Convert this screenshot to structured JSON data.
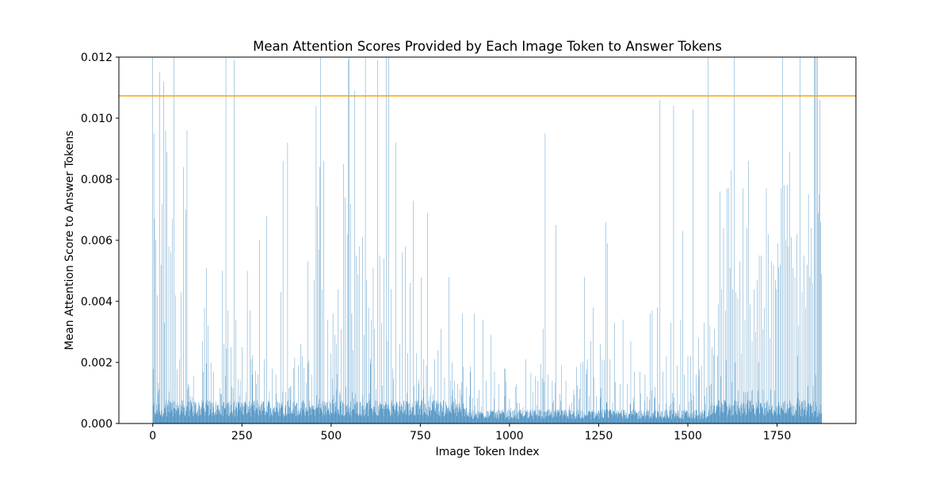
{
  "chart_data": {
    "type": "bar",
    "title": "Mean Attention Scores Provided by Each Image Token to Answer Tokens",
    "xlabel": "Image Token Index",
    "ylabel": "Mean Attention Score to Answer Tokens",
    "xlim": [
      -95,
      1971
    ],
    "ylim": [
      0,
      0.012
    ],
    "x_ticks": [
      0,
      250,
      500,
      750,
      1000,
      1250,
      1500,
      1750
    ],
    "x_tick_labels": [
      "0",
      "250",
      "500",
      "750",
      "1000",
      "1250",
      "1500",
      "1750"
    ],
    "y_ticks": [
      0,
      0.002,
      0.004,
      0.006,
      0.008,
      0.01,
      0.012
    ],
    "y_tick_labels": [
      "0.000",
      "0.002",
      "0.004",
      "0.006",
      "0.008",
      "0.010",
      "0.012"
    ],
    "grid": false,
    "n_bars": 1876,
    "bar_color": "#1f77b4",
    "threshold_line": {
      "value": 0.01073,
      "color": "#ffa500"
    },
    "spikes": [
      [
        0,
        0.012
      ],
      [
        3,
        0.0095
      ],
      [
        5,
        0.0067
      ],
      [
        8,
        0.006
      ],
      [
        12,
        0.0042
      ],
      [
        15,
        0.001
      ],
      [
        20,
        0.0115
      ],
      [
        23,
        0.0052
      ],
      [
        26,
        0.0072
      ],
      [
        30,
        0.0112
      ],
      [
        33,
        0.0033
      ],
      [
        36,
        0.0096
      ],
      [
        39,
        0.0089
      ],
      [
        45,
        0.0058
      ],
      [
        50,
        0.0056
      ],
      [
        55,
        0.0067
      ],
      [
        60,
        0.012
      ],
      [
        63,
        0.0042
      ],
      [
        75,
        0.0021
      ],
      [
        80,
        0.0043
      ],
      [
        86,
        0.0084
      ],
      [
        92,
        0.007
      ],
      [
        96,
        0.0096
      ],
      [
        100,
        0.0013
      ],
      [
        105,
        0.0009
      ],
      [
        140,
        0.0027
      ],
      [
        145,
        0.0038
      ],
      [
        150,
        0.0051
      ],
      [
        155,
        0.0032
      ],
      [
        170,
        0.0017
      ],
      [
        195,
        0.005
      ],
      [
        200,
        0.0026
      ],
      [
        205,
        0.012
      ],
      [
        210,
        0.0037
      ],
      [
        220,
        0.0025
      ],
      [
        228,
        0.0119
      ],
      [
        232,
        0.0034
      ],
      [
        245,
        0.0014
      ],
      [
        250,
        0.0025
      ],
      [
        265,
        0.005
      ],
      [
        272,
        0.0037
      ],
      [
        280,
        0.0016
      ],
      [
        295,
        0.0016
      ],
      [
        300,
        0.006
      ],
      [
        320,
        0.0068
      ],
      [
        335,
        0.0018
      ],
      [
        345,
        0.0016
      ],
      [
        360,
        0.0043
      ],
      [
        365,
        0.0086
      ],
      [
        378,
        0.0092
      ],
      [
        385,
        0.0012
      ],
      [
        395,
        0.0018
      ],
      [
        408,
        0.0019
      ],
      [
        415,
        0.0026
      ],
      [
        420,
        0.0022
      ],
      [
        435,
        0.0053
      ],
      [
        445,
        0.0016
      ],
      [
        452,
        0.0047
      ],
      [
        458,
        0.0104
      ],
      [
        462,
        0.0071
      ],
      [
        465,
        0.0057
      ],
      [
        468,
        0.0084
      ],
      [
        471,
        0.012
      ],
      [
        475,
        0.0044
      ],
      [
        480,
        0.0086
      ],
      [
        490,
        0.0034
      ],
      [
        500,
        0.0023
      ],
      [
        505,
        0.0036
      ],
      [
        510,
        0.0029
      ],
      [
        515,
        0.0026
      ],
      [
        520,
        0.0044
      ],
      [
        528,
        0.0031
      ],
      [
        535,
        0.0085
      ],
      [
        540,
        0.0074
      ],
      [
        545,
        0.0062
      ],
      [
        548,
        0.0119
      ],
      [
        551,
        0.012
      ],
      [
        554,
        0.0072
      ],
      [
        558,
        0.0036
      ],
      [
        562,
        0.0024
      ],
      [
        566,
        0.0109
      ],
      [
        570,
        0.0055
      ],
      [
        575,
        0.0049
      ],
      [
        580,
        0.0058
      ],
      [
        588,
        0.0061
      ],
      [
        592,
        0.0029
      ],
      [
        596,
        0.012
      ],
      [
        600,
        0.0047
      ],
      [
        605,
        0.0038
      ],
      [
        612,
        0.0034
      ],
      [
        618,
        0.0051
      ],
      [
        622,
        0.0031
      ],
      [
        630,
        0.0119
      ],
      [
        636,
        0.0055
      ],
      [
        642,
        0.0033
      ],
      [
        648,
        0.0054
      ],
      [
        654,
        0.012
      ],
      [
        658,
        0.0027
      ],
      [
        662,
        0.012
      ],
      [
        668,
        0.0044
      ],
      [
        672,
        0.0018
      ],
      [
        682,
        0.0092
      ],
      [
        692,
        0.0026
      ],
      [
        700,
        0.0056
      ],
      [
        708,
        0.0058
      ],
      [
        715,
        0.0023
      ],
      [
        722,
        0.0046
      ],
      [
        730,
        0.0073
      ],
      [
        740,
        0.0023
      ],
      [
        745,
        0.0013
      ],
      [
        752,
        0.0048
      ],
      [
        760,
        0.0021
      ],
      [
        770,
        0.0069
      ],
      [
        780,
        0.0012
      ],
      [
        790,
        0.0021
      ],
      [
        800,
        0.0024
      ],
      [
        808,
        0.0031
      ],
      [
        818,
        0.0015
      ],
      [
        830,
        0.0048
      ],
      [
        842,
        0.0011
      ],
      [
        855,
        0.0013
      ],
      [
        868,
        0.0036
      ],
      [
        880,
        0.0012
      ],
      [
        890,
        0.0017
      ],
      [
        902,
        0.0036
      ],
      [
        915,
        0.0011
      ],
      [
        925,
        0.0034
      ],
      [
        935,
        0.0014
      ],
      [
        948,
        0.0029
      ],
      [
        958,
        0.0017
      ],
      [
        970,
        0.0013
      ],
      [
        985,
        0.0018
      ],
      [
        1000,
        0.0008
      ],
      [
        1020,
        0.0013
      ],
      [
        1045,
        0.0021
      ],
      [
        1060,
        0.0005
      ],
      [
        1080,
        0.0014
      ],
      [
        1095,
        0.0031
      ],
      [
        1100,
        0.0095
      ],
      [
        1108,
        0.0016
      ],
      [
        1120,
        0.0014
      ],
      [
        1130,
        0.0065
      ],
      [
        1145,
        0.0019
      ],
      [
        1158,
        0.0014
      ],
      [
        1168,
        0.0006
      ],
      [
        1180,
        0.0011
      ],
      [
        1200,
        0.0017
      ],
      [
        1210,
        0.0048
      ],
      [
        1218,
        0.0021
      ],
      [
        1228,
        0.0027
      ],
      [
        1235,
        0.0038
      ],
      [
        1243,
        0.0009
      ],
      [
        1255,
        0.0026
      ],
      [
        1260,
        0.0021
      ],
      [
        1270,
        0.0066
      ],
      [
        1275,
        0.0059
      ],
      [
        1282,
        0.0021
      ],
      [
        1295,
        0.0033
      ],
      [
        1310,
        0.0013
      ],
      [
        1318,
        0.0034
      ],
      [
        1330,
        0.0013
      ],
      [
        1340,
        0.0027
      ],
      [
        1350,
        0.0017
      ],
      [
        1365,
        0.0017
      ],
      [
        1380,
        0.0016
      ],
      [
        1395,
        0.0036
      ],
      [
        1400,
        0.0037
      ],
      [
        1408,
        0.0012
      ],
      [
        1415,
        0.0038
      ],
      [
        1422,
        0.0106
      ],
      [
        1430,
        0.0017
      ],
      [
        1440,
        0.0022
      ],
      [
        1452,
        0.0033
      ],
      [
        1460,
        0.0104
      ],
      [
        1470,
        0.0019
      ],
      [
        1480,
        0.0034
      ],
      [
        1485,
        0.0063
      ],
      [
        1490,
        0.0016
      ],
      [
        1500,
        0.0022
      ],
      [
        1508,
        0.0022
      ],
      [
        1515,
        0.0103
      ],
      [
        1523,
        0.0016
      ],
      [
        1530,
        0.0028
      ],
      [
        1538,
        0.0019
      ],
      [
        1545,
        0.0033
      ],
      [
        1552,
        0.0012
      ],
      [
        1557,
        0.012
      ],
      [
        1562,
        0.0032
      ],
      [
        1568,
        0.0025
      ],
      [
        1575,
        0.0031
      ],
      [
        1585,
        0.0039
      ],
      [
        1590,
        0.0076
      ],
      [
        1595,
        0.0044
      ],
      [
        1600,
        0.0064
      ],
      [
        1605,
        0.0037
      ],
      [
        1610,
        0.0077
      ],
      [
        1615,
        0.0077
      ],
      [
        1618,
        0.0051
      ],
      [
        1622,
        0.0083
      ],
      [
        1626,
        0.0044
      ],
      [
        1630,
        0.012
      ],
      [
        1635,
        0.0043
      ],
      [
        1640,
        0.0041
      ],
      [
        1645,
        0.0053
      ],
      [
        1650,
        0.0023
      ],
      [
        1655,
        0.0077
      ],
      [
        1660,
        0.0034
      ],
      [
        1665,
        0.0064
      ],
      [
        1670,
        0.0086
      ],
      [
        1675,
        0.0039
      ],
      [
        1680,
        0.0027
      ],
      [
        1685,
        0.0044
      ],
      [
        1690,
        0.003
      ],
      [
        1695,
        0.0047
      ],
      [
        1700,
        0.0055
      ],
      [
        1705,
        0.0055
      ],
      [
        1710,
        0.0031
      ],
      [
        1715,
        0.0038
      ],
      [
        1720,
        0.0077
      ],
      [
        1725,
        0.0062
      ],
      [
        1730,
        0.0028
      ],
      [
        1735,
        0.0053
      ],
      [
        1740,
        0.0052
      ],
      [
        1745,
        0.0047
      ],
      [
        1748,
        0.0044
      ],
      [
        1752,
        0.0059
      ],
      [
        1755,
        0.0051
      ],
      [
        1758,
        0.0052
      ],
      [
        1762,
        0.0077
      ],
      [
        1766,
        0.012
      ],
      [
        1770,
        0.0078
      ],
      [
        1774,
        0.006
      ],
      [
        1778,
        0.0078
      ],
      [
        1782,
        0.0058
      ],
      [
        1786,
        0.0089
      ],
      [
        1790,
        0.0061
      ],
      [
        1795,
        0.0051
      ],
      [
        1800,
        0.0048
      ],
      [
        1805,
        0.0062
      ],
      [
        1810,
        0.0032
      ],
      [
        1815,
        0.012
      ],
      [
        1820,
        0.0043
      ],
      [
        1825,
        0.0055
      ],
      [
        1830,
        0.0038
      ],
      [
        1835,
        0.0052
      ],
      [
        1838,
        0.0075
      ],
      [
        1842,
        0.0048
      ],
      [
        1846,
        0.0064
      ],
      [
        1850,
        0.0046
      ],
      [
        1854,
        0.012
      ],
      [
        1857,
        0.012
      ],
      [
        1860,
        0.012
      ],
      [
        1863,
        0.012
      ],
      [
        1866,
        0.0069
      ],
      [
        1868,
        0.0075
      ],
      [
        1870,
        0.0106
      ],
      [
        1872,
        0.0066
      ],
      [
        1874,
        0.0049
      ]
    ]
  }
}
